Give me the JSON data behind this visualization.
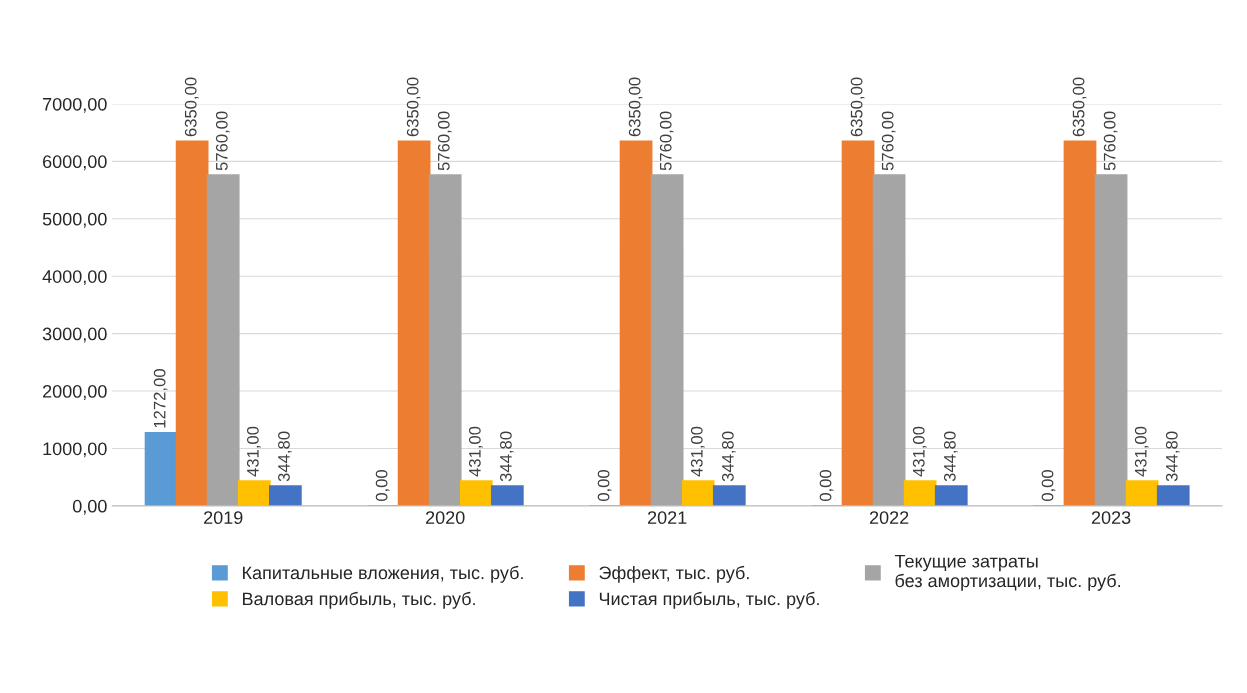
{
  "chart_data": {
    "type": "bar",
    "categories": [
      "2019",
      "2020",
      "2021",
      "2022",
      "2023"
    ],
    "series": [
      {
        "name": "Капитальные вложения, тыс. руб.",
        "color": "#5b9bd5",
        "values": [
          1272,
          0,
          0,
          0,
          0
        ],
        "value_labels": [
          "1272,00",
          "0,00",
          "0,00",
          "0,00",
          "0,00"
        ]
      },
      {
        "name": "Эффект, тыс. руб.",
        "color": "#ed7d31",
        "values": [
          6350,
          6350,
          6350,
          6350,
          6350
        ],
        "value_labels": [
          "6350,00",
          "6350,00",
          "6350,00",
          "6350,00",
          "6350,00"
        ]
      },
      {
        "name": "Текущие затраты\nбез амортизации, тыс. руб.",
        "color": "#a5a5a5",
        "values": [
          5760,
          5760,
          5760,
          5760,
          5760
        ],
        "value_labels": [
          "5760,00",
          "5760,00",
          "5760,00",
          "5760,00",
          "5760,00"
        ]
      },
      {
        "name": "Валовая прибыль, тыс. руб.",
        "color": "#ffc000",
        "values": [
          431,
          431,
          431,
          431,
          431
        ],
        "value_labels": [
          "431,00",
          "431,00",
          "431,00",
          "431,00",
          "431,00"
        ]
      },
      {
        "name": "Чистая прибыль, тыс. руб.",
        "color": "#4472c4",
        "values": [
          344.8,
          344.8,
          344.8,
          344.8,
          344.8
        ],
        "value_labels": [
          "344,80",
          "344,80",
          "344,80",
          "344,80",
          "344,80"
        ]
      }
    ],
    "ylim": [
      0,
      7000
    ],
    "yticks": [
      {
        "value": 0,
        "label": "0,00"
      },
      {
        "value": 1000,
        "label": "1000,00"
      },
      {
        "value": 2000,
        "label": "2000,00"
      },
      {
        "value": 3000,
        "label": "3000,00"
      },
      {
        "value": 4000,
        "label": "4000,00"
      },
      {
        "value": 5000,
        "label": "5000,00"
      },
      {
        "value": 6000,
        "label": "6000,00"
      },
      {
        "value": 7000,
        "label": "7000,00"
      }
    ],
    "grid": "y",
    "legend": "bottom"
  }
}
